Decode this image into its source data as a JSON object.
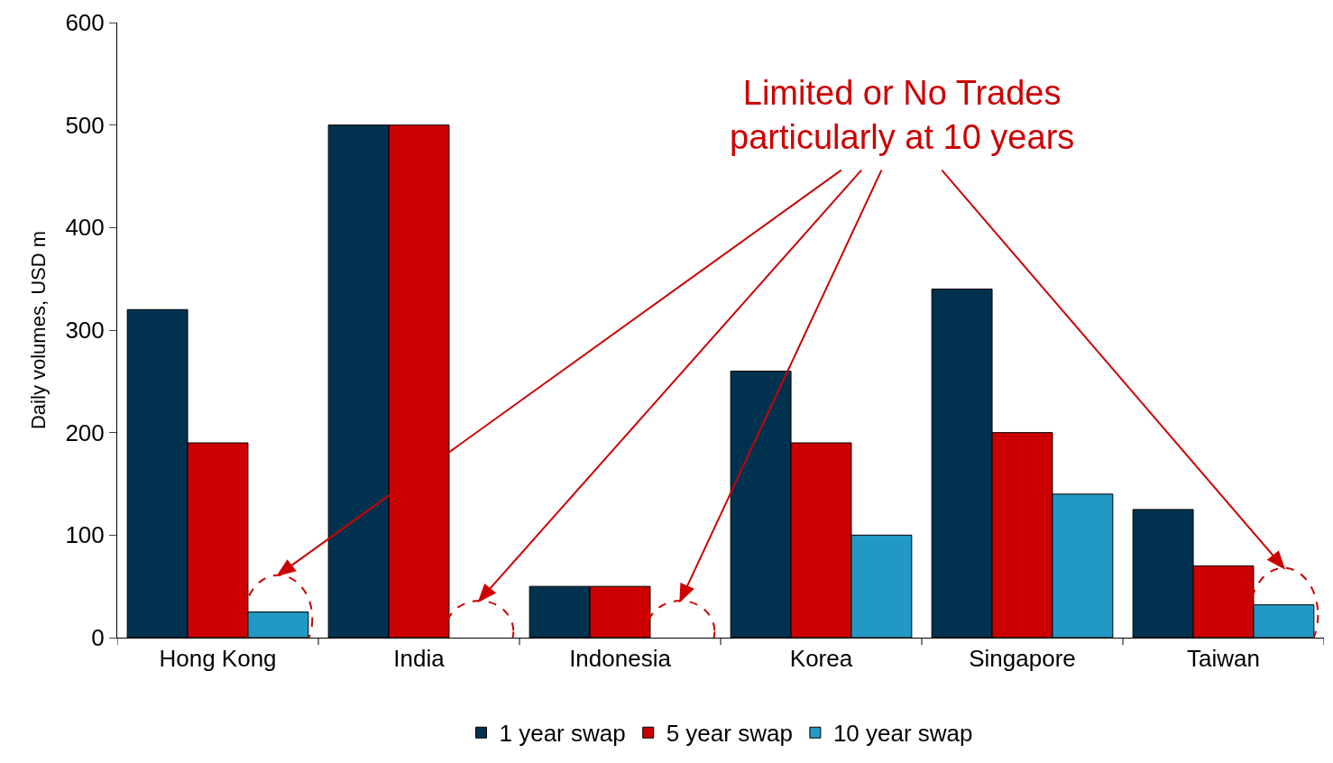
{
  "chart_data": {
    "type": "bar",
    "ylabel": "Daily volumes, USD m",
    "categories": [
      "Hong Kong",
      "India",
      "Indonesia",
      "Korea",
      "Singapore",
      "Taiwan"
    ],
    "series": [
      {
        "name": "1 year swap",
        "color": "#003250",
        "values": [
          320,
          500,
          50,
          260,
          340,
          125
        ]
      },
      {
        "name": "5 year swap",
        "color": "#cc0000",
        "values": [
          190,
          500,
          50,
          190,
          200,
          70
        ]
      },
      {
        "name": "10 year swap",
        "color": "#2199c4",
        "values": [
          25,
          null,
          null,
          100,
          140,
          32
        ]
      }
    ],
    "ylim": [
      0,
      600
    ],
    "yticks": [
      0,
      100,
      200,
      300,
      400,
      500,
      600
    ],
    "legend": "bottom",
    "annotations": [
      "Limited or No Trades\nparticularly at 10 years"
    ]
  }
}
